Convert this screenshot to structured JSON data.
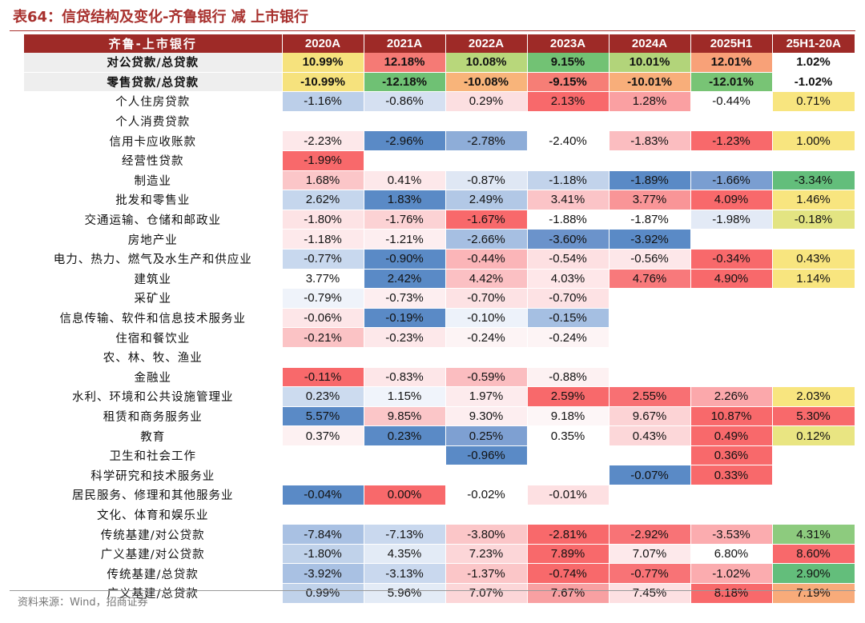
{
  "title": "表64：信贷结构及变化-齐鲁银行 减 上市银行",
  "columns": [
    "齐鲁-上市银行",
    "2020A",
    "2021A",
    "2022A",
    "2023A",
    "2024A",
    "2025H1",
    "25H1-20A"
  ],
  "rows": [
    {
      "label": "对公贷款/总贷款",
      "bold": true,
      "shade": true,
      "sep": false,
      "cells": [
        {
          "v": "10.99%",
          "c": "#f6e27d"
        },
        {
          "v": "12.18%",
          "c": "#f57a75"
        },
        {
          "v": "10.08%",
          "c": "#b8d77b"
        },
        {
          "v": "9.15%",
          "c": "#72c274"
        },
        {
          "v": "10.01%",
          "c": "#b2d47a"
        },
        {
          "v": "12.01%",
          "c": "#f8a178"
        },
        {
          "v": "1.02%",
          "c": "#ffffff"
        }
      ]
    },
    {
      "label": "零售贷款/总贷款",
      "bold": true,
      "shade": true,
      "sep": false,
      "cells": [
        {
          "v": "-10.99%",
          "c": "#f6e27d"
        },
        {
          "v": "-12.18%",
          "c": "#6fc174"
        },
        {
          "v": "-10.08%",
          "c": "#f8b47a"
        },
        {
          "v": "-9.15%",
          "c": "#f67e76"
        },
        {
          "v": "-10.01%",
          "c": "#f8ae7a"
        },
        {
          "v": "-12.01%",
          "c": "#78c475"
        },
        {
          "v": "-1.02%",
          "c": "#ffffff"
        }
      ]
    },
    {
      "label": "个人住房贷款",
      "bold": false,
      "shade": false,
      "sep": true,
      "cells": [
        {
          "v": "-1.16%",
          "c": "#bccfe9"
        },
        {
          "v": "-0.86%",
          "c": "#d5e0f1"
        },
        {
          "v": "0.29%",
          "c": "#fcdfe1"
        },
        {
          "v": "2.13%",
          "c": "#f8696b"
        },
        {
          "v": "1.28%",
          "c": "#faa0a2"
        },
        {
          "v": "-0.44%",
          "c": "#ffffff"
        },
        {
          "v": "0.71%",
          "c": "#f8e57f"
        }
      ]
    },
    {
      "label": "个人消费贷款",
      "bold": false,
      "shade": false,
      "sep": false,
      "cells": [
        {
          "v": "",
          "c": ""
        },
        {
          "v": "",
          "c": ""
        },
        {
          "v": "",
          "c": ""
        },
        {
          "v": "",
          "c": ""
        },
        {
          "v": "",
          "c": ""
        },
        {
          "v": "",
          "c": ""
        },
        {
          "v": "",
          "c": ""
        }
      ]
    },
    {
      "label": "信用卡应收账款",
      "bold": false,
      "shade": false,
      "sep": false,
      "cells": [
        {
          "v": "-2.23%",
          "c": "#fde8ea"
        },
        {
          "v": "-2.96%",
          "c": "#5a8ac6"
        },
        {
          "v": "-2.78%",
          "c": "#8eadd8"
        },
        {
          "v": "-2.40%",
          "c": "#ffffff"
        },
        {
          "v": "-1.83%",
          "c": "#fbbdc0"
        },
        {
          "v": "-1.23%",
          "c": "#f8696b"
        },
        {
          "v": "1.00%",
          "c": "#f8e57f"
        }
      ]
    },
    {
      "label": "经营性贷款",
      "bold": false,
      "shade": false,
      "sep": false,
      "cells": [
        {
          "v": "-1.99%",
          "c": "#f8696b"
        },
        {
          "v": "",
          "c": ""
        },
        {
          "v": "",
          "c": ""
        },
        {
          "v": "",
          "c": ""
        },
        {
          "v": "",
          "c": ""
        },
        {
          "v": "",
          "c": ""
        },
        {
          "v": "",
          "c": ""
        }
      ]
    },
    {
      "label": "制造业",
      "bold": false,
      "shade": false,
      "sep": true,
      "cells": [
        {
          "v": "1.68%",
          "c": "#fbc6c8"
        },
        {
          "v": "0.41%",
          "c": "#fde8ea"
        },
        {
          "v": "-0.87%",
          "c": "#dfe7f4"
        },
        {
          "v": "-1.18%",
          "c": "#c2d3eb"
        },
        {
          "v": "-1.89%",
          "c": "#5a8ac6"
        },
        {
          "v": "-1.66%",
          "c": "#7a9ed1"
        },
        {
          "v": "-3.34%",
          "c": "#63be7b"
        }
      ]
    },
    {
      "label": "批发和零售业",
      "bold": false,
      "shade": false,
      "sep": false,
      "cells": [
        {
          "v": "2.62%",
          "c": "#c5d6ed"
        },
        {
          "v": "1.83%",
          "c": "#5a8ac6"
        },
        {
          "v": "2.49%",
          "c": "#b2c8e6"
        },
        {
          "v": "3.41%",
          "c": "#fbc4c7"
        },
        {
          "v": "3.77%",
          "c": "#f99597"
        },
        {
          "v": "4.09%",
          "c": "#f8696b"
        },
        {
          "v": "1.46%",
          "c": "#f8e57f"
        }
      ]
    },
    {
      "label": "交通运输、仓储和邮政业",
      "bold": false,
      "shade": false,
      "sep": false,
      "cells": [
        {
          "v": "-1.80%",
          "c": "#fde3e5"
        },
        {
          "v": "-1.76%",
          "c": "#fcd2d4"
        },
        {
          "v": "-1.67%",
          "c": "#f8696b"
        },
        {
          "v": "-1.88%",
          "c": "#ffffff"
        },
        {
          "v": "-1.87%",
          "c": "#ffffff"
        },
        {
          "v": "-1.98%",
          "c": "#e3eaf6"
        },
        {
          "v": "-0.18%",
          "c": "#e3e482"
        }
      ]
    },
    {
      "label": "房地产业",
      "bold": false,
      "shade": false,
      "sep": false,
      "cells": [
        {
          "v": "-1.18%",
          "c": "#fde9eb"
        },
        {
          "v": "-1.21%",
          "c": "#fdeef0"
        },
        {
          "v": "-2.66%",
          "c": "#a6bfe2"
        },
        {
          "v": "-3.60%",
          "c": "#6b93cb"
        },
        {
          "v": "-3.92%",
          "c": "#5a8ac6"
        },
        {
          "v": "",
          "c": ""
        },
        {
          "v": "",
          "c": ""
        }
      ]
    },
    {
      "label": "电力、热力、燃气及水生产和供应业",
      "bold": false,
      "shade": false,
      "sep": false,
      "cells": [
        {
          "v": "-0.77%",
          "c": "#c8d8ee"
        },
        {
          "v": "-0.90%",
          "c": "#5a8ac6"
        },
        {
          "v": "-0.44%",
          "c": "#fbb5b8"
        },
        {
          "v": "-0.54%",
          "c": "#fde0e2"
        },
        {
          "v": "-0.56%",
          "c": "#fde7e9"
        },
        {
          "v": "-0.34%",
          "c": "#f8696b"
        },
        {
          "v": "0.43%",
          "c": "#f8e57f"
        }
      ]
    },
    {
      "label": "建筑业",
      "bold": false,
      "shade": false,
      "sep": false,
      "cells": [
        {
          "v": "3.77%",
          "c": "#ffffff"
        },
        {
          "v": "2.42%",
          "c": "#5a8ac6"
        },
        {
          "v": "4.42%",
          "c": "#fbc0c3"
        },
        {
          "v": "4.03%",
          "c": "#fee7e9"
        },
        {
          "v": "4.76%",
          "c": "#f8797b"
        },
        {
          "v": "4.90%",
          "c": "#f8696b"
        },
        {
          "v": "1.14%",
          "c": "#f8e57f"
        }
      ]
    },
    {
      "label": "采矿业",
      "bold": false,
      "shade": false,
      "sep": false,
      "cells": [
        {
          "v": "-0.79%",
          "c": "#eff3fa"
        },
        {
          "v": "-0.73%",
          "c": "#fdeef0"
        },
        {
          "v": "-0.70%",
          "c": "#fde2e4"
        },
        {
          "v": "-0.70%",
          "c": "#fde2e4"
        },
        {
          "v": "",
          "c": ""
        },
        {
          "v": "",
          "c": ""
        },
        {
          "v": "",
          "c": ""
        }
      ]
    },
    {
      "label": "信息传输、软件和信息技术服务业",
      "bold": false,
      "shade": false,
      "sep": false,
      "cells": [
        {
          "v": "-0.06%",
          "c": "#fde6e8"
        },
        {
          "v": "-0.19%",
          "c": "#5a8ac6"
        },
        {
          "v": "-0.10%",
          "c": "#edf2fa"
        },
        {
          "v": "-0.15%",
          "c": "#a5bfe2"
        },
        {
          "v": "",
          "c": ""
        },
        {
          "v": "",
          "c": ""
        },
        {
          "v": "",
          "c": ""
        }
      ]
    },
    {
      "label": "住宿和餐饮业",
      "bold": false,
      "shade": false,
      "sep": false,
      "cells": [
        {
          "v": "-0.21%",
          "c": "#fbc3c5"
        },
        {
          "v": "-0.23%",
          "c": "#fde8ea"
        },
        {
          "v": "-0.24%",
          "c": "#fdf4f5"
        },
        {
          "v": "-0.24%",
          "c": "#fdf4f5"
        },
        {
          "v": "",
          "c": ""
        },
        {
          "v": "",
          "c": ""
        },
        {
          "v": "",
          "c": ""
        }
      ]
    },
    {
      "label": "农、林、牧、渔业",
      "bold": false,
      "shade": false,
      "sep": false,
      "cells": [
        {
          "v": "",
          "c": ""
        },
        {
          "v": "",
          "c": ""
        },
        {
          "v": "",
          "c": ""
        },
        {
          "v": "",
          "c": ""
        },
        {
          "v": "",
          "c": ""
        },
        {
          "v": "",
          "c": ""
        },
        {
          "v": "",
          "c": ""
        }
      ]
    },
    {
      "label": "金融业",
      "bold": false,
      "shade": false,
      "sep": false,
      "cells": [
        {
          "v": "-0.11%",
          "c": "#f8696b"
        },
        {
          "v": "-0.83%",
          "c": "#fde6e8"
        },
        {
          "v": "-0.59%",
          "c": "#fbbdc0"
        },
        {
          "v": "-0.88%",
          "c": "#fdf1f2"
        },
        {
          "v": "",
          "c": ""
        },
        {
          "v": "",
          "c": ""
        },
        {
          "v": "",
          "c": ""
        }
      ]
    },
    {
      "label": "水利、环境和公共设施管理业",
      "bold": false,
      "shade": false,
      "sep": false,
      "cells": [
        {
          "v": "0.23%",
          "c": "#ccdbef"
        },
        {
          "v": "1.15%",
          "c": "#f0f4fb"
        },
        {
          "v": "1.97%",
          "c": "#fdebed"
        },
        {
          "v": "2.59%",
          "c": "#f8696b"
        },
        {
          "v": "2.55%",
          "c": "#f87073"
        },
        {
          "v": "2.26%",
          "c": "#fba8ab"
        },
        {
          "v": "2.03%",
          "c": "#f8e57f"
        }
      ]
    },
    {
      "label": "租赁和商务服务业",
      "bold": false,
      "shade": false,
      "sep": false,
      "cells": [
        {
          "v": "5.57%",
          "c": "#5a8ac6"
        },
        {
          "v": "9.85%",
          "c": "#fbc6c8"
        },
        {
          "v": "9.30%",
          "c": "#fdeef0"
        },
        {
          "v": "9.18%",
          "c": "#fdf6f7"
        },
        {
          "v": "9.67%",
          "c": "#fcd3d5"
        },
        {
          "v": "10.87%",
          "c": "#f8696b"
        },
        {
          "v": "5.30%",
          "c": "#f8696b"
        }
      ]
    },
    {
      "label": "教育",
      "bold": false,
      "shade": false,
      "sep": false,
      "cells": [
        {
          "v": "0.37%",
          "c": "#fdf1f2"
        },
        {
          "v": "0.23%",
          "c": "#5a8ac6"
        },
        {
          "v": "0.25%",
          "c": "#7ea0d2"
        },
        {
          "v": "0.35%",
          "c": "#ffffff"
        },
        {
          "v": "0.43%",
          "c": "#fcd7d9"
        },
        {
          "v": "0.49%",
          "c": "#f8696b"
        },
        {
          "v": "0.12%",
          "c": "#e9e582"
        }
      ]
    },
    {
      "label": "卫生和社会工作",
      "bold": false,
      "shade": false,
      "sep": false,
      "cells": [
        {
          "v": "",
          "c": ""
        },
        {
          "v": "",
          "c": ""
        },
        {
          "v": "-0.96%",
          "c": "#5a8ac6"
        },
        {
          "v": "",
          "c": ""
        },
        {
          "v": "",
          "c": ""
        },
        {
          "v": "0.36%",
          "c": "#f8696b"
        },
        {
          "v": "",
          "c": ""
        }
      ]
    },
    {
      "label": "科学研究和技术服务业",
      "bold": false,
      "shade": false,
      "sep": false,
      "cells": [
        {
          "v": "",
          "c": ""
        },
        {
          "v": "",
          "c": ""
        },
        {
          "v": "",
          "c": ""
        },
        {
          "v": "",
          "c": ""
        },
        {
          "v": "-0.07%",
          "c": "#5a8ac6"
        },
        {
          "v": "0.33%",
          "c": "#f8696b"
        },
        {
          "v": "",
          "c": ""
        }
      ]
    },
    {
      "label": "居民服务、修理和其他服务业",
      "bold": false,
      "shade": false,
      "sep": false,
      "cells": [
        {
          "v": "-0.04%",
          "c": "#5a8ac6"
        },
        {
          "v": "0.00%",
          "c": "#f8696b"
        },
        {
          "v": "-0.02%",
          "c": "#ffffff"
        },
        {
          "v": "-0.01%",
          "c": "#fde0e2"
        },
        {
          "v": "",
          "c": ""
        },
        {
          "v": "",
          "c": ""
        },
        {
          "v": "",
          "c": ""
        }
      ]
    },
    {
      "label": "文化、体育和娱乐业",
      "bold": false,
      "shade": false,
      "sep": false,
      "cells": [
        {
          "v": "",
          "c": ""
        },
        {
          "v": "",
          "c": ""
        },
        {
          "v": "",
          "c": ""
        },
        {
          "v": "",
          "c": ""
        },
        {
          "v": "",
          "c": ""
        },
        {
          "v": "",
          "c": ""
        },
        {
          "v": "",
          "c": ""
        }
      ]
    },
    {
      "label": "传统基建/对公贷款",
      "bold": false,
      "shade": false,
      "sep": true,
      "cells": [
        {
          "v": "-7.84%",
          "c": "#a9c1e3"
        },
        {
          "v": "-7.13%",
          "c": "#c9d8ee"
        },
        {
          "v": "-3.80%",
          "c": "#fbc6c8"
        },
        {
          "v": "-2.81%",
          "c": "#f8696b"
        },
        {
          "v": "-2.92%",
          "c": "#f87376"
        },
        {
          "v": "-3.53%",
          "c": "#fbacaf"
        },
        {
          "v": "4.31%",
          "c": "#8dcb7e"
        }
      ]
    },
    {
      "label": "广义基建/对公贷款",
      "bold": false,
      "shade": false,
      "sep": false,
      "cells": [
        {
          "v": "-1.80%",
          "c": "#c0d2ea"
        },
        {
          "v": "4.35%",
          "c": "#e3ebf6"
        },
        {
          "v": "7.23%",
          "c": "#fcd6d8"
        },
        {
          "v": "7.89%",
          "c": "#f8696b"
        },
        {
          "v": "7.07%",
          "c": "#fde9eb"
        },
        {
          "v": "6.80%",
          "c": "#ffffff"
        },
        {
          "v": "8.60%",
          "c": "#f8696b"
        }
      ]
    },
    {
      "label": "传统基建/总贷款",
      "bold": false,
      "shade": false,
      "sep": false,
      "cells": [
        {
          "v": "-3.92%",
          "c": "#a9c1e3"
        },
        {
          "v": "-3.13%",
          "c": "#c9d8ee"
        },
        {
          "v": "-1.37%",
          "c": "#fbc6c8"
        },
        {
          "v": "-0.74%",
          "c": "#f8696b"
        },
        {
          "v": "-0.77%",
          "c": "#f87376"
        },
        {
          "v": "-1.02%",
          "c": "#fbacaf"
        },
        {
          "v": "2.90%",
          "c": "#63be7b"
        }
      ]
    },
    {
      "label": "广义基建/总贷款",
      "bold": false,
      "shade": false,
      "sep": false,
      "cells": [
        {
          "v": "0.99%",
          "c": "#c0d2ea"
        },
        {
          "v": "5.96%",
          "c": "#e3ebf6"
        },
        {
          "v": "7.07%",
          "c": "#fcd6d8"
        },
        {
          "v": "7.67%",
          "c": "#f8a0a2"
        },
        {
          "v": "7.45%",
          "c": "#fde0e2"
        },
        {
          "v": "8.18%",
          "c": "#f8696b"
        },
        {
          "v": "7.19%",
          "c": "#f8ab7a"
        }
      ]
    }
  ],
  "footer": "资料来源：Wind，招商证券"
}
